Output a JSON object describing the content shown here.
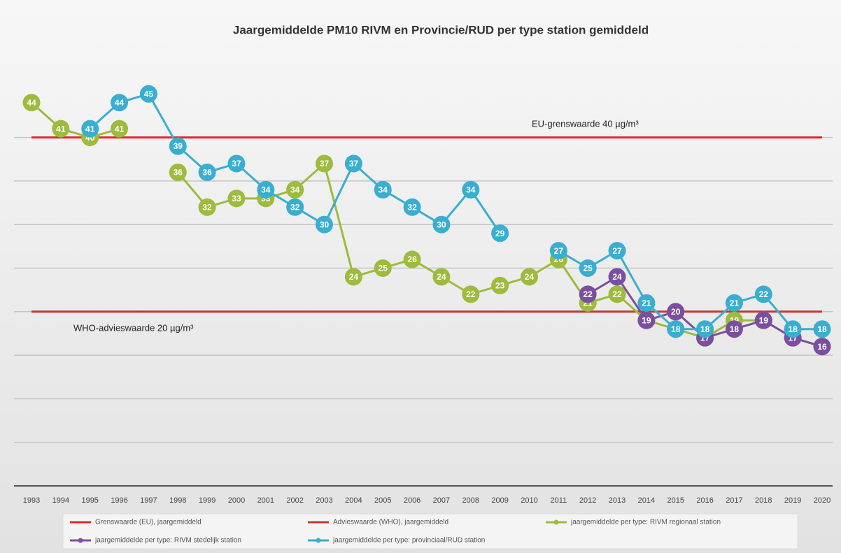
{
  "chart_data": {
    "type": "line",
    "title": "Jaargemiddelde PM10 RIVM en Provincie/RUD per type station gemiddeld",
    "annotations": [
      "EU-grenswaarde 40 µg/m³",
      "WHO-advieswaarde 20 µg/m³"
    ],
    "categories": [
      "1993",
      "1994",
      "1995",
      "1996",
      "1997",
      "1998",
      "1999",
      "2000",
      "2001",
      "2002",
      "2003",
      "2004",
      "2005",
      "2006",
      "2007",
      "2008",
      "2009",
      "2010",
      "2011",
      "2012",
      "2013",
      "2014",
      "2015",
      "2016",
      "2017",
      "2018",
      "2019",
      "2020"
    ],
    "ylim": [
      0,
      50
    ],
    "yticks": [
      0,
      5,
      10,
      15,
      20,
      25,
      30,
      35,
      40
    ],
    "grid": true,
    "legend": "bottom",
    "series": [
      {
        "name": "Grenswaarde (EU), jaargemiddeld",
        "color": "#e4262b",
        "marker": false,
        "values": [
          40,
          40,
          40,
          40,
          40,
          40,
          40,
          40,
          40,
          40,
          40,
          40,
          40,
          40,
          40,
          40,
          40,
          40,
          40,
          40,
          40,
          40,
          40,
          40,
          40,
          40,
          40,
          40
        ]
      },
      {
        "name": "Advieswaarde (WHO), jaargemiddeld",
        "color": "#c23a2e",
        "marker": false,
        "values": [
          20,
          20,
          20,
          20,
          20,
          20,
          20,
          20,
          20,
          20,
          20,
          20,
          20,
          20,
          20,
          20,
          20,
          20,
          20,
          20,
          20,
          20,
          20,
          20,
          20,
          20,
          20,
          20
        ]
      },
      {
        "name": "jaargemiddelde per type: RIVM regionaal station",
        "color": "#9dbb3c",
        "marker": true,
        "values": [
          44,
          41,
          40,
          41,
          null,
          36,
          32,
          33,
          33,
          34,
          37,
          24,
          25,
          26,
          24,
          22,
          23,
          24,
          26,
          21,
          22,
          19,
          18,
          17,
          19,
          19,
          17,
          16
        ]
      },
      {
        "name": "jaargemiddelde per type: RIVM stedelijk station",
        "color": "#7b4f9f",
        "marker": true,
        "values": [
          null,
          null,
          null,
          null,
          null,
          null,
          null,
          null,
          null,
          null,
          null,
          null,
          null,
          null,
          null,
          null,
          null,
          null,
          null,
          22,
          24,
          19,
          20,
          17,
          18,
          19,
          17,
          16
        ]
      },
      {
        "name": "jaargemiddelde per type: provinciaal/RUD station",
        "color": "#3aaed0",
        "marker": true,
        "values": [
          null,
          null,
          41,
          44,
          45,
          39,
          36,
          37,
          34,
          32,
          30,
          37,
          34,
          32,
          30,
          34,
          29,
          null,
          27,
          25,
          27,
          21,
          18,
          18,
          21,
          22,
          18,
          18
        ]
      }
    ]
  }
}
